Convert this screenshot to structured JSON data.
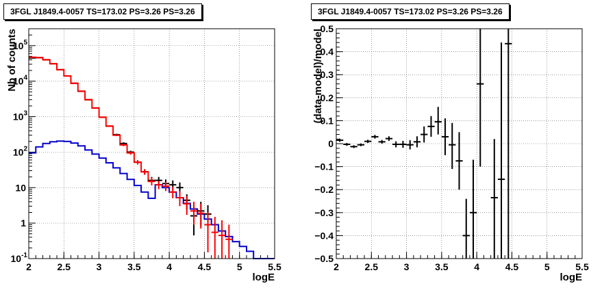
{
  "chart_data": [
    {
      "type": "scatter",
      "title": "3FGL J1849.4-0057 TS=173.02 PS=3.26 PS=3.26",
      "xlabel": "logE",
      "ylabel": "Nb of counts",
      "xlim": [
        2,
        5.5
      ],
      "ylim": [
        0.1,
        300000
      ],
      "yscale": "log",
      "grid": true,
      "x_ticks": [
        "2",
        "2.5",
        "3",
        "3.5",
        "4",
        "4.5",
        "5",
        "5.5"
      ],
      "y_ticks": [
        {
          "value": 0.1,
          "label": "10",
          "exp": "-1"
        },
        {
          "value": 1,
          "label": "1",
          "exp": ""
        },
        {
          "value": 10,
          "label": "10",
          "exp": ""
        },
        {
          "value": 100,
          "label": "10",
          "exp": "2"
        },
        {
          "value": 1000,
          "label": "10",
          "exp": "3"
        },
        {
          "value": 10000,
          "label": "10",
          "exp": "4"
        },
        {
          "value": 100000,
          "label": "10",
          "exp": "5"
        }
      ],
      "series": [
        {
          "style": "steps",
          "color": "#ff0000",
          "edges": [
            2.0,
            2.1,
            2.2,
            2.3,
            2.4,
            2.5,
            2.6,
            2.7,
            2.8,
            2.9,
            3.0,
            3.1,
            3.2,
            3.3,
            3.4,
            3.5,
            3.6,
            3.7,
            3.8
          ],
          "values": [
            47000,
            46000,
            40000,
            31000,
            21000,
            14000,
            8700,
            5200,
            3000,
            1750,
            960,
            540,
            300,
            160,
            95,
            52,
            28,
            15
          ]
        },
        {
          "style": "steps",
          "color": "#0000cc",
          "edges": [
            2.0,
            2.1,
            2.2,
            2.3,
            2.4,
            2.5,
            2.6,
            2.7,
            2.8,
            2.9,
            3.0,
            3.1,
            3.2,
            3.3,
            3.4,
            3.5,
            3.6,
            3.7,
            3.8,
            3.9,
            4.0,
            4.1,
            4.2,
            4.3,
            4.4,
            4.5,
            4.6,
            4.7,
            4.8,
            4.9,
            5.0,
            5.1,
            5.2,
            5.3,
            5.4,
            5.5
          ],
          "values": [
            95,
            140,
            175,
            195,
            205,
            200,
            180,
            150,
            115,
            88,
            68,
            50,
            36,
            25,
            17,
            11.5,
            7.5,
            5.0,
            12,
            10,
            7.5,
            5.2,
            3.6,
            2.5,
            1.8,
            1.3,
            0.9,
            0.6,
            0.42,
            0.3,
            0.22,
            0.16,
            0.1,
            0.1,
            0.1
          ]
        },
        {
          "style": "errorbars",
          "color": "#000000",
          "halfwidth": 0.05,
          "points": [
            {
              "x": 2.05,
              "y": 45000,
              "lo": 44500,
              "hi": 45500
            },
            {
              "x": 2.15,
              "y": 46000,
              "lo": 45500,
              "hi": 46500
            },
            {
              "x": 2.25,
              "y": 40000,
              "lo": 39500,
              "hi": 40500
            },
            {
              "x": 2.35,
              "y": 31000,
              "lo": 30600,
              "hi": 31400
            },
            {
              "x": 2.45,
              "y": 21000,
              "lo": 20700,
              "hi": 21300
            },
            {
              "x": 2.55,
              "y": 14000,
              "lo": 13800,
              "hi": 14200
            },
            {
              "x": 2.65,
              "y": 8700,
              "lo": 8550,
              "hi": 8850
            },
            {
              "x": 2.75,
              "y": 5200,
              "lo": 5100,
              "hi": 5300
            },
            {
              "x": 2.85,
              "y": 3000,
              "lo": 2940,
              "hi": 3060
            },
            {
              "x": 2.95,
              "y": 1750,
              "lo": 1710,
              "hi": 1790
            },
            {
              "x": 3.05,
              "y": 960,
              "lo": 930,
              "hi": 990
            },
            {
              "x": 3.15,
              "y": 540,
              "lo": 515,
              "hi": 565
            },
            {
              "x": 3.25,
              "y": 310,
              "lo": 290,
              "hi": 330
            },
            {
              "x": 3.35,
              "y": 175,
              "lo": 160,
              "hi": 190
            },
            {
              "x": 3.45,
              "y": 100,
              "lo": 90,
              "hi": 110
            },
            {
              "x": 3.55,
              "y": 52,
              "lo": 45,
              "hi": 59
            },
            {
              "x": 3.65,
              "y": 28,
              "lo": 23,
              "hi": 33
            },
            {
              "x": 3.75,
              "y": 16,
              "lo": 12,
              "hi": 20
            },
            {
              "x": 3.85,
              "y": 16,
              "lo": 12,
              "hi": 20
            },
            {
              "x": 3.95,
              "y": 13,
              "lo": 9.5,
              "hi": 17
            },
            {
              "x": 4.05,
              "y": 12,
              "lo": 8.5,
              "hi": 16
            },
            {
              "x": 4.15,
              "y": 10,
              "lo": 7,
              "hi": 14
            },
            {
              "x": 4.25,
              "y": 4.4,
              "lo": 2.4,
              "hi": 6.5
            },
            {
              "x": 4.35,
              "y": 1.6,
              "lo": 0.45,
              "hi": 3.3
            },
            {
              "x": 4.45,
              "y": 2.2,
              "lo": 0.8,
              "hi": 4.0
            },
            {
              "x": 4.55,
              "y": 1.8,
              "lo": 0.7,
              "hi": 3.2
            }
          ]
        },
        {
          "style": "errorbars",
          "color": "#ff0000",
          "halfwidth": 0.05,
          "points": [
            {
              "x": 2.05,
              "y": 47000,
              "lo": 46500,
              "hi": 47500
            },
            {
              "x": 2.15,
              "y": 46000,
              "lo": 45500,
              "hi": 46500
            },
            {
              "x": 2.25,
              "y": 40000,
              "lo": 39500,
              "hi": 40500
            },
            {
              "x": 2.35,
              "y": 31000,
              "lo": 30600,
              "hi": 31400
            },
            {
              "x": 2.45,
              "y": 21000,
              "lo": 20700,
              "hi": 21300
            },
            {
              "x": 2.55,
              "y": 14000,
              "lo": 13800,
              "hi": 14200
            },
            {
              "x": 2.65,
              "y": 8700,
              "lo": 8550,
              "hi": 8850
            },
            {
              "x": 2.75,
              "y": 5200,
              "lo": 5100,
              "hi": 5300
            },
            {
              "x": 2.85,
              "y": 3000,
              "lo": 2940,
              "hi": 3060
            },
            {
              "x": 2.95,
              "y": 1750,
              "lo": 1710,
              "hi": 1790
            },
            {
              "x": 3.05,
              "y": 960,
              "lo": 930,
              "hi": 990
            },
            {
              "x": 3.15,
              "y": 540,
              "lo": 515,
              "hi": 565
            },
            {
              "x": 3.25,
              "y": 300,
              "lo": 282,
              "hi": 318
            },
            {
              "x": 3.35,
              "y": 160,
              "lo": 147,
              "hi": 173
            },
            {
              "x": 3.45,
              "y": 95,
              "lo": 85,
              "hi": 105
            },
            {
              "x": 3.55,
              "y": 52,
              "lo": 45,
              "hi": 59
            },
            {
              "x": 3.65,
              "y": 28,
              "lo": 23,
              "hi": 33
            },
            {
              "x": 3.75,
              "y": 15,
              "lo": 11.5,
              "hi": 19
            },
            {
              "x": 3.85,
              "y": 12,
              "lo": 9,
              "hi": 15.5
            },
            {
              "x": 3.95,
              "y": 11,
              "lo": 8,
              "hi": 14.5
            },
            {
              "x": 4.05,
              "y": 7.5,
              "lo": 5,
              "hi": 10.5
            },
            {
              "x": 4.15,
              "y": 5.2,
              "lo": 3.0,
              "hi": 8.0
            },
            {
              "x": 4.25,
              "y": 3.5,
              "lo": 1.7,
              "hi": 5.8
            },
            {
              "x": 4.35,
              "y": 2.2,
              "lo": 0.9,
              "hi": 4.0
            },
            {
              "x": 4.45,
              "y": 1.9,
              "lo": 0.7,
              "hi": 3.5
            },
            {
              "x": 4.55,
              "y": 0.9,
              "lo": 0.15,
              "hi": 2.0
            },
            {
              "x": 4.65,
              "y": 0.55,
              "lo": 0.1,
              "hi": 1.5
            },
            {
              "x": 4.75,
              "y": 0.45,
              "lo": 0.1,
              "hi": 1.2
            },
            {
              "x": 4.85,
              "y": 0.35,
              "lo": 0.1,
              "hi": 0.9
            }
          ]
        }
      ]
    },
    {
      "type": "scatter",
      "title": "3FGL J1849.4-0057 TS=173.02 PS=3.26 PS=3.26",
      "xlabel": "logE",
      "ylabel": "(data-model)/model",
      "xlim": [
        2,
        5.5
      ],
      "ylim": [
        -0.5,
        0.5
      ],
      "yscale": "linear",
      "grid": true,
      "x_ticks": [
        "2",
        "2.5",
        "3",
        "3.5",
        "4",
        "4.5",
        "5",
        "5.5"
      ],
      "y_ticks": [
        {
          "value": -0.5,
          "label": "−0.5"
        },
        {
          "value": -0.4,
          "label": "−0.4"
        },
        {
          "value": -0.3,
          "label": "−0.3"
        },
        {
          "value": -0.2,
          "label": "−0.2"
        },
        {
          "value": -0.1,
          "label": "−0.1"
        },
        {
          "value": 0,
          "label": "0"
        },
        {
          "value": 0.1,
          "label": "0.1"
        },
        {
          "value": 0.2,
          "label": "0.2"
        },
        {
          "value": 0.3,
          "label": "0.3"
        },
        {
          "value": 0.4,
          "label": "0.4"
        },
        {
          "value": 0.5,
          "label": "0.5"
        }
      ],
      "series": [
        {
          "style": "errorbars",
          "color": "#000000",
          "halfwidth": 0.05,
          "points": [
            {
              "x": 2.05,
              "y": 0.015,
              "lo": 0.008,
              "hi": 0.022
            },
            {
              "x": 2.15,
              "y": -0.003,
              "lo": -0.009,
              "hi": 0.003
            },
            {
              "x": 2.25,
              "y": -0.013,
              "lo": -0.019,
              "hi": -0.007
            },
            {
              "x": 2.35,
              "y": -0.005,
              "lo": -0.011,
              "hi": 0.001
            },
            {
              "x": 2.45,
              "y": 0.01,
              "lo": 0.003,
              "hi": 0.017
            },
            {
              "x": 2.55,
              "y": 0.03,
              "lo": 0.022,
              "hi": 0.038
            },
            {
              "x": 2.65,
              "y": 0.008,
              "lo": 0.0,
              "hi": 0.016
            },
            {
              "x": 2.75,
              "y": 0.022,
              "lo": 0.012,
              "hi": 0.032
            },
            {
              "x": 2.85,
              "y": -0.003,
              "lo": -0.016,
              "hi": 0.01
            },
            {
              "x": 2.95,
              "y": -0.003,
              "lo": -0.018,
              "hi": 0.012
            },
            {
              "x": 3.05,
              "y": -0.005,
              "lo": -0.025,
              "hi": 0.015
            },
            {
              "x": 3.15,
              "y": 0.008,
              "lo": -0.016,
              "hi": 0.032
            },
            {
              "x": 3.25,
              "y": 0.04,
              "lo": 0.005,
              "hi": 0.075
            },
            {
              "x": 3.35,
              "y": 0.075,
              "lo": 0.03,
              "hi": 0.12
            },
            {
              "x": 3.45,
              "y": 0.095,
              "lo": 0.04,
              "hi": 0.16
            },
            {
              "x": 3.55,
              "y": 0.03,
              "lo": -0.05,
              "hi": 0.11
            },
            {
              "x": 3.65,
              "y": -0.005,
              "lo": -0.11,
              "hi": 0.09
            },
            {
              "x": 3.75,
              "y": -0.075,
              "lo": -0.2,
              "hi": 0.05
            },
            {
              "x": 3.85,
              "y": -0.4,
              "lo": -0.5,
              "hi": -0.24
            },
            {
              "x": 3.95,
              "y": -0.3,
              "lo": -0.5,
              "hi": -0.07
            },
            {
              "x": 4.05,
              "y": 0.26,
              "lo": -0.1,
              "hi": 0.5
            },
            {
              "x": 4.25,
              "y": -0.235,
              "lo": -0.5,
              "hi": 0.02
            },
            {
              "x": 4.35,
              "y": -0.155,
              "lo": -0.5,
              "hi": 0.44
            },
            {
              "x": 4.45,
              "y": 0.435,
              "lo": -0.5,
              "hi": 0.5
            }
          ]
        }
      ]
    }
  ]
}
